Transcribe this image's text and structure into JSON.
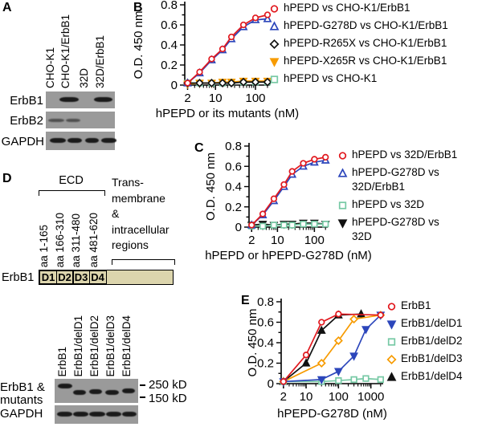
{
  "panels": {
    "a": {
      "label": "A",
      "lanes": [
        "CHO-K1",
        "CHO-K1/ErbB1",
        "32D",
        "32D/ErbB1"
      ],
      "rows": [
        "ErbB1",
        "ErbB2",
        "GAPDH"
      ]
    },
    "b": {
      "label": "B"
    },
    "c": {
      "label": "C"
    },
    "d": {
      "label": "D",
      "ecd_label": "ECD",
      "region_label_lines": [
        "Trans-",
        "membrane",
        "&",
        "intracellular",
        "regions"
      ],
      "aa_labels": [
        "aa 1-165",
        "aa 166-310",
        "aa 311-480",
        "aa 481-620"
      ],
      "bar_label": "ErbB1",
      "domains": [
        "D1",
        "D2",
        "D3",
        "D4"
      ],
      "lanes": [
        "ErbB1",
        "ErbB1/delD1",
        "ErbB1/delD2",
        "ErbB1/delD3",
        "ErbB1/delD4"
      ],
      "row_lines": [
        "ErbB1 &",
        "mutants",
        "GAPDH"
      ],
      "markers": [
        "250 kD",
        "150 kD"
      ]
    },
    "e": {
      "label": "E"
    }
  },
  "colors": {
    "red": "#e1181e",
    "blue": "#2c46bb",
    "orange": "#f79b00",
    "green": "#77c9a5",
    "black": "#111111",
    "blot_bg": "#9a9a9a",
    "band": "#1a1a1a",
    "domain_bar_fill": "#dcd5ad"
  },
  "chart_data": [
    {
      "id": "B",
      "type": "line",
      "title": "",
      "xlabel": "hPEPD or its mutants (nM)",
      "ylabel": "O.D. 450 nm",
      "xscale": "log",
      "xlim": [
        1.7,
        230
      ],
      "ylim": [
        0,
        0.8
      ],
      "xticks": [
        2,
        10,
        100
      ],
      "yticks": [
        0,
        0.2,
        0.4,
        0.6,
        0.8
      ],
      "x": [
        2,
        4,
        8,
        15,
        25,
        50,
        100,
        200
      ],
      "series": [
        {
          "name": "hPEPD vs CHO-K1/ErbB1",
          "color": "#e1181e",
          "marker": "circle",
          "filled": false,
          "y": [
            0.02,
            0.13,
            0.26,
            0.36,
            0.48,
            0.6,
            0.67,
            0.7
          ]
        },
        {
          "name": "hPEPD-G278D vs CHO-K1/ErbB1",
          "color": "#2c46bb",
          "marker": "triangle-up",
          "filled": false,
          "y": [
            0.02,
            0.12,
            0.25,
            0.35,
            0.46,
            0.58,
            0.65,
            0.66
          ]
        },
        {
          "name": "hPEPD-R265X vs CHO-K1/ErbB1",
          "color": "#111111",
          "marker": "diamond",
          "filled": false,
          "y": [
            0.02,
            0.02,
            0.02,
            0.02,
            0.02,
            0.03,
            0.03,
            0.03
          ]
        },
        {
          "name": "hPEPD-X265R vs CHO-K1/ErbB1",
          "color": "#f79b00",
          "marker": "triangle-down",
          "filled": true,
          "y": [
            0.01,
            0.02,
            0.02,
            0.03,
            0.03,
            0.04,
            0.04,
            0.04
          ]
        },
        {
          "name": "hPEPD vs CHO-K1",
          "color": "#77c9a5",
          "marker": "square",
          "filled": false,
          "y": [
            0.02,
            0.02,
            0.02,
            0.02,
            0.03,
            0.03,
            0.03,
            0.03
          ]
        }
      ]
    },
    {
      "id": "C",
      "type": "line",
      "title": "",
      "xlabel": "hPEPD or hPEPD-G278D (nM)",
      "ylabel": "O.D. 450 nm",
      "xscale": "log",
      "xlim": [
        1.7,
        230
      ],
      "ylim": [
        0,
        0.8
      ],
      "xticks": [
        2,
        10,
        100
      ],
      "yticks": [
        0,
        0.2,
        0.4,
        0.6,
        0.8
      ],
      "x": [
        2,
        4,
        8,
        15,
        25,
        50,
        100,
        200
      ],
      "series": [
        {
          "name": "hPEPD vs 32D/ErbB1",
          "color": "#e1181e",
          "marker": "circle",
          "filled": false,
          "y": [
            0.02,
            0.13,
            0.28,
            0.42,
            0.55,
            0.63,
            0.67,
            0.69
          ]
        },
        {
          "name": "hPEPD-G278D vs 32D/ErbB1",
          "color": "#2c46bb",
          "marker": "triangle-up",
          "filled": false,
          "y": [
            0.02,
            0.12,
            0.26,
            0.4,
            0.52,
            0.6,
            0.64,
            0.66
          ]
        },
        {
          "name": "hPEPD vs 32D",
          "color": "#77c9a5",
          "marker": "square",
          "filled": false,
          "y": [
            0.01,
            0.01,
            0.02,
            0.02,
            0.02,
            0.03,
            0.03,
            0.03
          ]
        },
        {
          "name": "hPEPD-G278D vs 32D",
          "color": "#111111",
          "marker": "triangle-down",
          "filled": true,
          "y": [
            0.02,
            0.03,
            0.02,
            0.03,
            0.03,
            0.04,
            0.04,
            0.03
          ]
        }
      ]
    },
    {
      "id": "E",
      "type": "line",
      "title": "",
      "xlabel": "hPEPD-G278D (nM)",
      "ylabel": "O.D. 450 nm",
      "xscale": "log",
      "xlim": [
        1.7,
        2400
      ],
      "ylim": [
        0,
        0.8
      ],
      "xticks": [
        2,
        10,
        100,
        1000
      ],
      "yticks": [
        0,
        0.2,
        0.4,
        0.6,
        0.8
      ],
      "series": [
        {
          "name": "ErbB1",
          "color": "#e1181e",
          "marker": "circle",
          "filled": false,
          "x": [
            2,
            10,
            30,
            100,
            2000
          ],
          "y": [
            0.02,
            0.28,
            0.6,
            0.68,
            0.67
          ]
        },
        {
          "name": "ErbB1/delD1",
          "color": "#2c46bb",
          "marker": "triangle-down",
          "filled": true,
          "x": [
            2,
            30,
            100,
            300,
            700,
            2000
          ],
          "y": [
            0.02,
            0.04,
            0.12,
            0.27,
            0.53,
            0.67
          ]
        },
        {
          "name": "ErbB1/delD2",
          "color": "#77c9a5",
          "marker": "square",
          "filled": false,
          "x": [
            2,
            30,
            100,
            300,
            700,
            2000
          ],
          "y": [
            0.02,
            0.02,
            0.03,
            0.04,
            0.05,
            0.04
          ]
        },
        {
          "name": "ErbB1/delD3",
          "color": "#f79b00",
          "marker": "diamond",
          "filled": false,
          "x": [
            2,
            30,
            100,
            300,
            2000
          ],
          "y": [
            0.02,
            0.2,
            0.42,
            0.63,
            0.67
          ]
        },
        {
          "name": "ErbB1/delD4",
          "color": "#111111",
          "marker": "triangle-up",
          "filled": true,
          "x": [
            2,
            10,
            30,
            100,
            500
          ],
          "y": [
            0.02,
            0.2,
            0.52,
            0.67,
            0.68
          ]
        }
      ]
    }
  ]
}
